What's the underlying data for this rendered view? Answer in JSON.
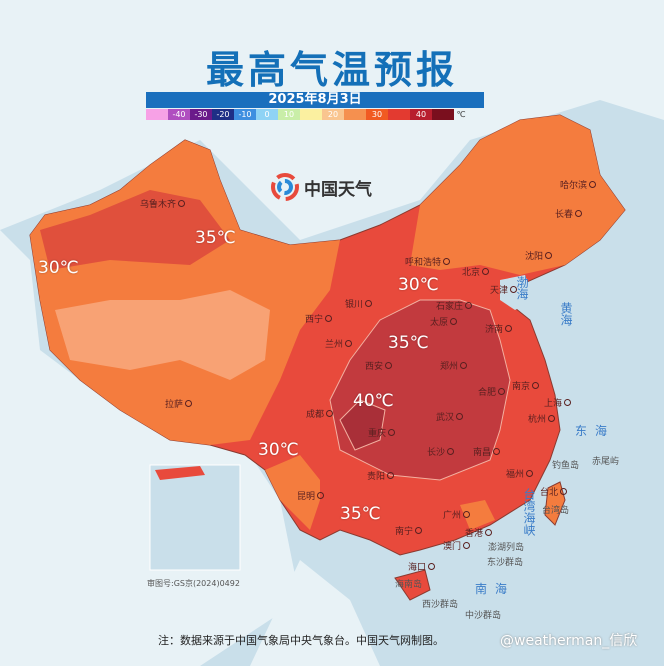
{
  "title": "最高气温预报",
  "date": "2025年8月3日",
  "legend": {
    "unit": "℃",
    "items": [
      {
        "label": "",
        "color": "#f7a1e6"
      },
      {
        "label": "-40",
        "color": "#b04fc0"
      },
      {
        "label": "-30",
        "color": "#6a1a8a"
      },
      {
        "label": "-20",
        "color": "#1e2f86"
      },
      {
        "label": "-10",
        "color": "#3e8fe0"
      },
      {
        "label": "0",
        "color": "#8fd3f5"
      },
      {
        "label": "10",
        "color": "#c9eea8"
      },
      {
        "label": "",
        "color": "#fbf0a0"
      },
      {
        "label": "20",
        "color": "#f9c58f"
      },
      {
        "label": "",
        "color": "#f5904f"
      },
      {
        "label": "30",
        "color": "#f15a22"
      },
      {
        "label": "",
        "color": "#e33a30"
      },
      {
        "label": "40",
        "color": "#b81e2e"
      },
      {
        "label": "",
        "color": "#7a0f1e"
      }
    ]
  },
  "logo": {
    "text": "中国天气",
    "icon": "china-weather-logo"
  },
  "colors": {
    "sea": "#c9dfea",
    "land_bg": "#e8f2f6",
    "t25": "#f8a274",
    "t28": "#f47c3e",
    "t32": "#e84a3c",
    "t35": "#c23a3e",
    "t40": "#a92f38"
  },
  "cities": [
    "乌鲁木齐",
    "哈尔滨",
    "长春",
    "沈阳",
    "呼和浩特",
    "北京",
    "天津",
    "石家庄",
    "银川",
    "西宁",
    "兰州",
    "太原",
    "济南",
    "西安",
    "郑州",
    "合肥",
    "南京",
    "上海",
    "成都",
    "重庆",
    "武汉",
    "杭州",
    "长沙",
    "南昌",
    "拉萨",
    "贵阳",
    "福州",
    "昆明",
    "台北",
    "广州",
    "南宁",
    "香港",
    "澳门",
    "海口"
  ],
  "islands": [
    "台湾岛",
    "海南岛",
    "钓鱼岛",
    "赤尾屿",
    "澎湖列岛",
    "东沙群岛",
    "西沙群岛",
    "中沙群岛"
  ],
  "seas": [
    "渤海",
    "黄海",
    "东海",
    "台湾海峡",
    "南海"
  ],
  "temps": [
    "35℃",
    "30℃",
    "30℃",
    "35℃",
    "40℃",
    "30℃",
    "35℃"
  ],
  "approval": "审图号:GS京(2024)0492",
  "note": "注：数据来源于中国气象局中央气象台。中国天气网制图。",
  "watermark": "@weatherman_信欣"
}
